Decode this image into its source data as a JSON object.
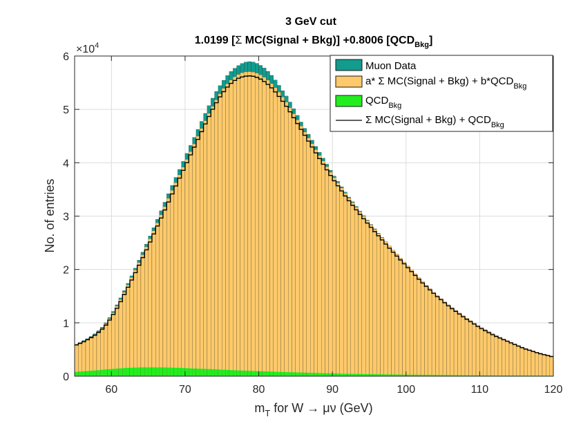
{
  "chart_data": {
    "type": "bar",
    "title_line1": "3 GeV cut",
    "title_line2": {
      "pre": "1.0199 [",
      "sigma": "Σ",
      "mid": " MC(Signal + Bkg)] +0.8006 [QCD",
      "sub": "Bkg",
      "post": "]"
    },
    "xlabel": {
      "pre": "m",
      "sub": "T",
      "post": " for W → μν (GeV)"
    },
    "ylabel": "No. of entries",
    "y_exponent": {
      "base": "×10",
      "power": "4"
    },
    "xlim": [
      55,
      120
    ],
    "ylim": [
      0,
      60000
    ],
    "xticks": [
      60,
      70,
      80,
      90,
      100,
      110,
      120
    ],
    "yticks": [
      0,
      10000,
      20000,
      30000,
      40000,
      50000,
      60000
    ],
    "ytick_labels": [
      "0",
      "1",
      "2",
      "3",
      "4",
      "5",
      "6"
    ],
    "grid": true,
    "legend_position": "top-right",
    "colors": {
      "data": "#119c8e",
      "fit": "#fdc96a",
      "qcd": "#22ee1e",
      "mc_line": "#000000"
    },
    "legend": [
      {
        "key": "data",
        "text": "Muon Data"
      },
      {
        "key": "fit",
        "pre": "a* Σ MC(Signal + Bkg) + b*QCD",
        "sub": "Bkg"
      },
      {
        "key": "qcd",
        "pre": "QCD",
        "sub": "Bkg"
      },
      {
        "key": "mc_line",
        "pre": "Σ MC(Signal + Bkg) + QCD",
        "sub": "Bkg"
      }
    ],
    "bin_width": 0.5,
    "x": [
      55,
      56,
      57,
      58,
      59,
      60,
      61,
      62,
      63,
      64,
      65,
      66,
      67,
      68,
      69,
      70,
      71,
      72,
      73,
      74,
      75,
      76,
      77,
      78,
      79,
      80,
      81,
      82,
      83,
      84,
      85,
      86,
      87,
      88,
      89,
      90,
      92,
      94,
      96,
      98,
      100,
      102,
      104,
      106,
      108,
      110,
      112,
      114,
      116,
      118,
      120
    ],
    "series": [
      {
        "name": "Muon Data",
        "key": "data",
        "values": [
          5800,
          6500,
          7200,
          8200,
          9500,
          11500,
          14000,
          16700,
          19500,
          22500,
          25500,
          28600,
          31800,
          35000,
          38000,
          41000,
          44000,
          47000,
          50000,
          52800,
          55000,
          56800,
          58000,
          58800,
          59000,
          58500,
          57500,
          56000,
          54000,
          52000,
          49500,
          47000,
          44800,
          42500,
          40300,
          38000,
          34000,
          30500,
          27200,
          24000,
          21000,
          18000,
          15300,
          13000,
          11000,
          9200,
          7700,
          6400,
          5200,
          4300,
          3600
        ]
      },
      {
        "name": "a* Σ MC(Signal + Bkg) + b*QCD_Bkg",
        "key": "fit",
        "values": [
          5800,
          6400,
          7100,
          8000,
          9300,
          11300,
          13700,
          16400,
          19200,
          22000,
          25000,
          28000,
          31000,
          34100,
          37000,
          39900,
          42800,
          45700,
          48600,
          51200,
          53500,
          55200,
          56400,
          57000,
          57100,
          56700,
          55800,
          54500,
          52800,
          50900,
          48600,
          46300,
          44100,
          41900,
          39800,
          37700,
          33800,
          30400,
          27100,
          24000,
          21000,
          18100,
          15400,
          13100,
          11100,
          9300,
          7800,
          6500,
          5300,
          4400,
          3700
        ]
      },
      {
        "name": "QCD_Bkg",
        "key": "qcd",
        "values": [
          800,
          900,
          1000,
          1100,
          1250,
          1350,
          1450,
          1550,
          1600,
          1650,
          1650,
          1650,
          1650,
          1600,
          1580,
          1520,
          1450,
          1400,
          1350,
          1300,
          1230,
          1170,
          1100,
          1050,
          1000,
          950,
          900,
          850,
          800,
          760,
          720,
          680,
          640,
          600,
          560,
          520,
          460,
          410,
          370,
          330,
          290,
          260,
          230,
          200,
          180,
          160,
          140,
          130,
          120,
          110,
          100
        ]
      },
      {
        "name": "Σ MC(Signal + Bkg) + QCD_Bkg",
        "key": "mc_line",
        "values": [
          5700,
          6300,
          7000,
          7900,
          9100,
          11000,
          13300,
          16000,
          18700,
          21500,
          24400,
          27400,
          30400,
          33400,
          36400,
          39300,
          42200,
          45100,
          48000,
          50700,
          52900,
          54600,
          55700,
          56200,
          56300,
          55900,
          55000,
          53700,
          52000,
          50100,
          47900,
          45700,
          43500,
          41300,
          39200,
          37100,
          33300,
          29900,
          26700,
          23600,
          20700,
          17800,
          15200,
          12900,
          10900,
          9100,
          7600,
          6400,
          5200,
          4300,
          3600
        ]
      }
    ]
  }
}
